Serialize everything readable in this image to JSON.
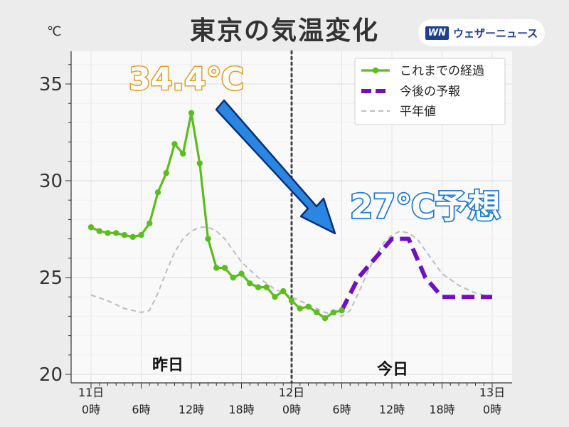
{
  "brand": {
    "logo": "WN",
    "name": "ウェザーニュース"
  },
  "chart_data": {
    "type": "line",
    "title": "東京の気温変化",
    "ylabel": "℃",
    "ylim": [
      20,
      36.5
    ],
    "yticks": [
      20,
      25,
      30,
      35
    ],
    "xlim": [
      0,
      48
    ],
    "xticks": [
      {
        "x": 0,
        "line1": "11日",
        "line2": "0時"
      },
      {
        "x": 6,
        "line1": "",
        "line2": "6時"
      },
      {
        "x": 12,
        "line1": "",
        "line2": "12時"
      },
      {
        "x": 18,
        "line1": "",
        "line2": "18時"
      },
      {
        "x": 24,
        "line1": "12日",
        "line2": "0時"
      },
      {
        "x": 30,
        "line1": "",
        "line2": "6時"
      },
      {
        "x": 36,
        "line1": "",
        "line2": "12時"
      },
      {
        "x": 42,
        "line1": "",
        "line2": "18時"
      },
      {
        "x": 48,
        "line1": "13日",
        "line2": "0時"
      }
    ],
    "grid": true,
    "legend_position": "top-right",
    "divider_x": 24,
    "series": [
      {
        "name": "これまでの経過",
        "style": "solid-markers",
        "color": "#5bbd1e",
        "points": [
          [
            0,
            27.6
          ],
          [
            1,
            27.4
          ],
          [
            2,
            27.3
          ],
          [
            3,
            27.3
          ],
          [
            4,
            27.2
          ],
          [
            5,
            27.1
          ],
          [
            6,
            27.2
          ],
          [
            7,
            27.8
          ],
          [
            8,
            29.4
          ],
          [
            9,
            30.4
          ],
          [
            10,
            31.9
          ],
          [
            11,
            31.4
          ],
          [
            12,
            33.5
          ],
          [
            13,
            30.9
          ],
          [
            14,
            27.0
          ],
          [
            15,
            25.5
          ],
          [
            16,
            25.5
          ],
          [
            17,
            25.0
          ],
          [
            18,
            25.2
          ],
          [
            19,
            24.7
          ],
          [
            20,
            24.5
          ],
          [
            21,
            24.5
          ],
          [
            22,
            24.0
          ],
          [
            23,
            24.3
          ],
          [
            24,
            23.8
          ],
          [
            25,
            23.4
          ],
          [
            26,
            23.5
          ],
          [
            27,
            23.2
          ],
          [
            28,
            22.9
          ],
          [
            29,
            23.2
          ],
          [
            30,
            23.3
          ]
        ]
      },
      {
        "name": "今後の予報",
        "style": "dashed-thick",
        "color": "#7010c0",
        "points": [
          [
            30,
            23.3
          ],
          [
            32,
            25.0
          ],
          [
            34,
            26.0
          ],
          [
            36,
            27.0
          ],
          [
            38,
            27.0
          ],
          [
            40,
            25.0
          ],
          [
            42,
            24.0
          ],
          [
            44,
            24.0
          ],
          [
            46,
            24.0
          ],
          [
            48,
            24.0
          ]
        ]
      },
      {
        "name": "平年値",
        "style": "dashed-thin",
        "color": "#bdbdbd",
        "points": [
          [
            0,
            24.1
          ],
          [
            2,
            23.8
          ],
          [
            4,
            23.4
          ],
          [
            6,
            23.2
          ],
          [
            7,
            23.3
          ],
          [
            8,
            24.2
          ],
          [
            9,
            25.3
          ],
          [
            10,
            26.3
          ],
          [
            11,
            27.0
          ],
          [
            12,
            27.4
          ],
          [
            13,
            27.6
          ],
          [
            14,
            27.6
          ],
          [
            15,
            27.4
          ],
          [
            16,
            27.0
          ],
          [
            17,
            26.4
          ],
          [
            18,
            25.8
          ],
          [
            20,
            25.0
          ],
          [
            22,
            24.4
          ],
          [
            24,
            24.0
          ],
          [
            26,
            23.6
          ],
          [
            28,
            23.2
          ],
          [
            30,
            23.0
          ],
          [
            31,
            23.3
          ],
          [
            32,
            24.2
          ],
          [
            33,
            25.2
          ],
          [
            34,
            26.1
          ],
          [
            35,
            26.8
          ],
          [
            36,
            27.2
          ],
          [
            37,
            27.4
          ],
          [
            38,
            27.3
          ],
          [
            39,
            27.0
          ],
          [
            40,
            26.4
          ],
          [
            41,
            25.8
          ],
          [
            42,
            25.2
          ],
          [
            44,
            24.6
          ],
          [
            46,
            24.2
          ],
          [
            48,
            24.0
          ]
        ]
      }
    ],
    "annotations": {
      "peak_label": "34.4℃",
      "forecast_label": "27℃予想",
      "yesterday_label": "昨日",
      "today_label": "今日"
    }
  }
}
